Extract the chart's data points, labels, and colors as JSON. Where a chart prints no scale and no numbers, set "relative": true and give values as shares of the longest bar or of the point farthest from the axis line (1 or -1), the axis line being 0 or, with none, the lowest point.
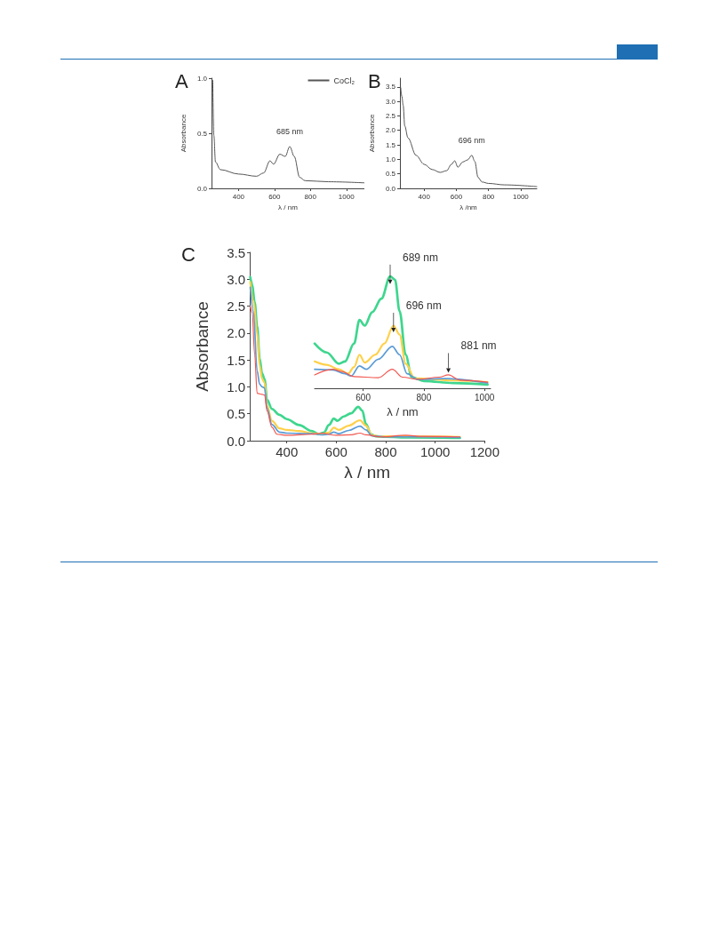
{
  "chart_data": [
    {
      "type": "line",
      "title": "A",
      "xlabel": "λ / nm",
      "ylabel": "Absorbance",
      "xlim": [
        250,
        1100
      ],
      "ylim": [
        0,
        1.0
      ],
      "xticks": [
        400,
        600,
        800,
        1000
      ],
      "yticks": [
        {
          "value": 0,
          "label": "0.0"
        },
        {
          "value": 0.5,
          "label": "0.5"
        },
        {
          "value": 1,
          "label": "1.0"
        }
      ],
      "legend": "top right",
      "annotations": [
        {
          "text": "685 nm",
          "x": 685,
          "y": 0.38
        }
      ],
      "series": [
        {
          "name": "CoCl₂",
          "color": "#555555",
          "x": [
            257,
            263,
            272,
            299,
            400,
            500,
            540,
            575,
            595,
            630,
            660,
            685,
            710,
            740,
            770,
            900,
            1100
          ],
          "values": [
            0.98,
            0.48,
            0.24,
            0.17,
            0.13,
            0.11,
            0.14,
            0.25,
            0.22,
            0.31,
            0.29,
            0.38,
            0.29,
            0.1,
            0.07,
            0.06,
            0.05
          ]
        }
      ]
    },
    {
      "type": "line",
      "title": "B",
      "xlabel": "λ /nm",
      "ylabel": "Absorbance",
      "xlim": [
        250,
        1100
      ],
      "ylim": [
        0,
        3.8
      ],
      "xticks": [
        400,
        600,
        800,
        1000
      ],
      "yticks": [
        {
          "value": 0,
          "label": "0.0"
        },
        {
          "value": 0.5,
          "label": "0.5"
        },
        {
          "value": 1,
          "label": "1.0"
        },
        {
          "value": 1.5,
          "label": "1.5"
        },
        {
          "value": 2,
          "label": "2.0"
        },
        {
          "value": 2.5,
          "label": "2.5"
        },
        {
          "value": 3,
          "label": "3.0"
        },
        {
          "value": 3.5,
          "label": "3.5"
        }
      ],
      "annotations": [
        {
          "text": "696 nm",
          "x": 696,
          "y": 1.14
        }
      ],
      "series": [
        {
          "color": "#555555",
          "x": [
            255,
            262,
            270,
            280,
            300,
            350,
            400,
            450,
            500,
            540,
            570,
            590,
            610,
            640,
            670,
            696,
            715,
            735,
            760,
            800,
            900,
            1100
          ],
          "values": [
            3.47,
            3.17,
            2.87,
            2.15,
            1.74,
            1.14,
            0.83,
            0.65,
            0.55,
            0.61,
            0.83,
            0.95,
            0.73,
            0.91,
            0.98,
            1.14,
            0.93,
            0.38,
            0.22,
            0.17,
            0.12,
            0.06
          ]
        }
      ]
    },
    {
      "type": "line",
      "title": "C",
      "xlabel": "λ / nm",
      "ylabel": "Absorbance",
      "xlim": [
        250,
        1200
      ],
      "ylim": [
        0,
        3.5
      ],
      "xticks": [
        400,
        600,
        800,
        1000,
        1200
      ],
      "yticks": [
        {
          "value": 0,
          "label": "0.0"
        },
        {
          "value": 0.5,
          "label": "0.5"
        },
        {
          "value": 1,
          "label": "1.0"
        },
        {
          "value": 1.5,
          "label": "1.5"
        },
        {
          "value": 2,
          "label": "2.0"
        },
        {
          "value": 2.5,
          "label": "2.5"
        },
        {
          "value": 3,
          "label": "3.0"
        },
        {
          "value": 3.5,
          "label": "3.5"
        }
      ],
      "series": [
        {
          "color": "#3ed68e",
          "x": [
            252,
            260,
            270,
            280,
            290,
            300,
            310,
            320,
            340,
            370,
            400,
            450,
            500,
            530,
            550,
            570,
            590,
            605,
            630,
            660,
            689,
            705,
            720,
            740,
            760,
            800,
            900,
            1100
          ],
          "values": [
            3.04,
            2.9,
            2.57,
            2.13,
            1.53,
            1.25,
            1.14,
            0.76,
            0.59,
            0.48,
            0.4,
            0.29,
            0.18,
            0.12,
            0.15,
            0.29,
            0.41,
            0.37,
            0.45,
            0.51,
            0.63,
            0.56,
            0.31,
            0.12,
            0.08,
            0.07,
            0.06,
            0.05
          ]
        },
        {
          "color": "#ffd04a",
          "x": [
            252,
            265,
            280,
            290,
            300,
            310,
            320,
            340,
            370,
            400,
            450,
            500,
            540,
            570,
            590,
            610,
            650,
            696,
            720,
            745,
            780,
            900,
            1100
          ],
          "values": [
            2.95,
            2.6,
            2.0,
            1.4,
            1.15,
            1.08,
            0.65,
            0.37,
            0.23,
            0.2,
            0.18,
            0.14,
            0.12,
            0.15,
            0.24,
            0.2,
            0.28,
            0.38,
            0.28,
            0.1,
            0.08,
            0.08,
            0.07
          ]
        },
        {
          "color": "#5b9bd5",
          "x": [
            252,
            265,
            280,
            290,
            300,
            310,
            320,
            340,
            370,
            400,
            500,
            540,
            570,
            590,
            610,
            650,
            696,
            720,
            745,
            800,
            900,
            1100
          ],
          "values": [
            2.85,
            2.4,
            1.3,
            1.05,
            1.0,
            0.98,
            0.6,
            0.3,
            0.16,
            0.14,
            0.13,
            0.11,
            0.12,
            0.16,
            0.13,
            0.19,
            0.27,
            0.2,
            0.09,
            0.07,
            0.07,
            0.06
          ]
        },
        {
          "color": "#f2564f",
          "x": [
            252,
            260,
            270,
            280,
            300,
            310,
            320,
            340,
            360,
            400,
            500,
            540,
            600,
            660,
            696,
            720,
            780,
            881,
            950,
            1100
          ],
          "values": [
            2.5,
            2.38,
            1.6,
            0.88,
            0.86,
            0.85,
            0.55,
            0.25,
            0.12,
            0.1,
            0.12,
            0.14,
            0.1,
            0.11,
            0.14,
            0.11,
            0.07,
            0.1,
            0.08,
            0.07
          ]
        }
      ]
    },
    {
      "type": "line",
      "relative": true,
      "xlabel": "λ / nm",
      "xlim": [
        440,
        1020
      ],
      "xticks": [
        600,
        800,
        1000
      ],
      "tick_labels": "x",
      "annotations": [
        {
          "text": "689 nm",
          "x": 689,
          "y": 0.93
        },
        {
          "text": "696 nm",
          "x": 700,
          "y": 0.5
        },
        {
          "text": "881 nm",
          "x": 881,
          "y": 0.14
        }
      ],
      "series": [
        {
          "color": "#3ed68e",
          "x": [
            440,
            480,
            520,
            540,
            570,
            588,
            605,
            630,
            660,
            689,
            705,
            720,
            740,
            760,
            800,
            900,
            1010
          ],
          "values": [
            0.4,
            0.32,
            0.22,
            0.24,
            0.4,
            0.61,
            0.56,
            0.68,
            0.8,
            1.0,
            0.97,
            0.69,
            0.3,
            0.1,
            0.066,
            0.047,
            0.034
          ]
        },
        {
          "color": "#ffd04a",
          "x": [
            440,
            480,
            520,
            550,
            570,
            588,
            605,
            640,
            670,
            700,
            720,
            740,
            770,
            900,
            1010
          ],
          "values": [
            0.24,
            0.21,
            0.17,
            0.13,
            0.19,
            0.3,
            0.23,
            0.3,
            0.4,
            0.56,
            0.48,
            0.22,
            0.09,
            0.07,
            0.055
          ]
        },
        {
          "color": "#5b9bd5",
          "x": [
            440,
            500,
            540,
            560,
            588,
            610,
            650,
            696,
            720,
            745,
            780,
            870,
            1010
          ],
          "values": [
            0.17,
            0.165,
            0.13,
            0.11,
            0.2,
            0.17,
            0.26,
            0.375,
            0.3,
            0.13,
            0.08,
            0.087,
            0.047
          ]
        },
        {
          "color": "#f2564f",
          "x": [
            440,
            500,
            530,
            570,
            650,
            696,
            730,
            780,
            850,
            881,
            920,
            1010
          ],
          "values": [
            0.12,
            0.17,
            0.15,
            0.105,
            0.095,
            0.17,
            0.1,
            0.08,
            0.1,
            0.12,
            0.073,
            0.055
          ]
        }
      ]
    }
  ]
}
